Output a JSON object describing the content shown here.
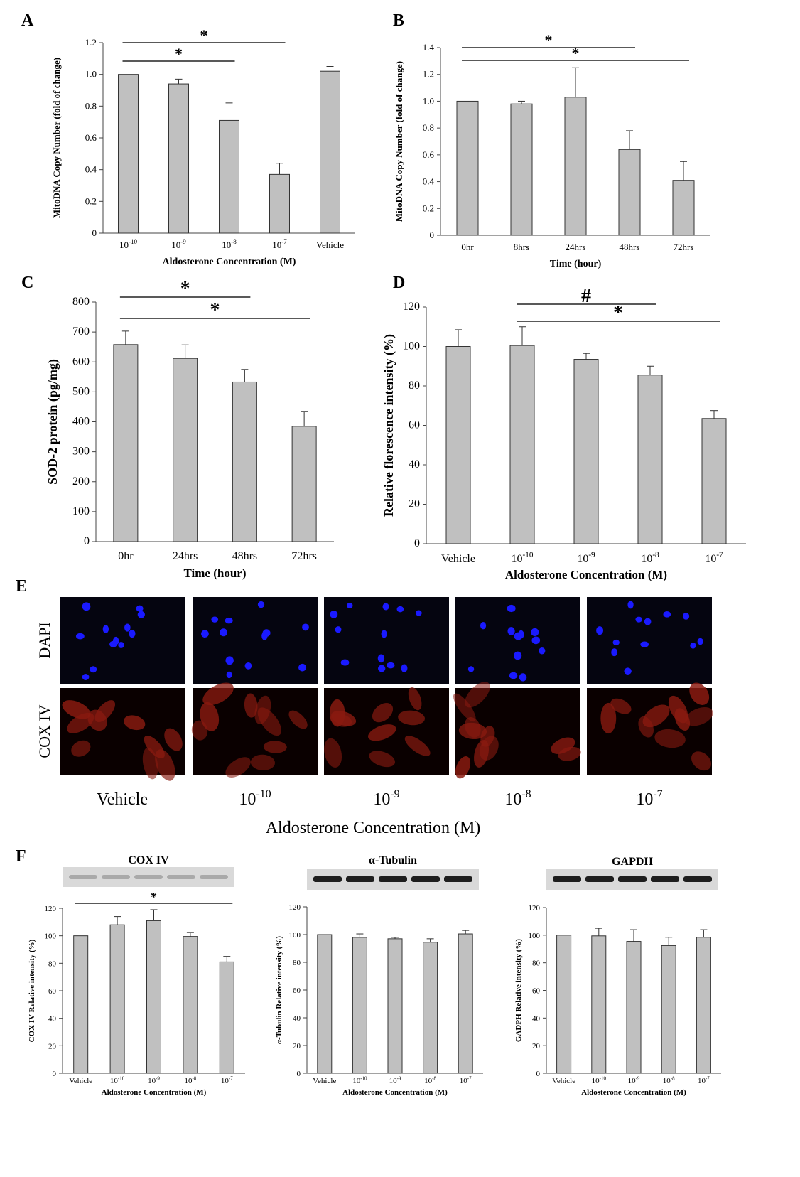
{
  "panels": {
    "A": {
      "letter": "A"
    },
    "B": {
      "letter": "B"
    },
    "C": {
      "letter": "C"
    },
    "D": {
      "letter": "D"
    },
    "E": {
      "letter": "E"
    },
    "F": {
      "letter": "F"
    }
  },
  "chart_data": [
    {
      "id": "A",
      "type": "bar",
      "categories": [
        "10-10",
        "10-9",
        "10-8",
        "10-7",
        "Vehicle"
      ],
      "values": [
        1.0,
        0.94,
        0.71,
        0.37,
        1.02
      ],
      "errors": [
        0.0,
        0.03,
        0.11,
        0.07,
        0.03
      ],
      "ylabel": "MitoDNA Copy Number (fold of change)",
      "xlabel": "Aldosterone Concentration (M)",
      "ylim": [
        0,
        1.2
      ],
      "yticks": [
        "0",
        "0.2",
        "0.4",
        "0.6",
        "0.8",
        "1.0",
        "1.2"
      ],
      "annotations": [
        {
          "from": 0,
          "to": 3,
          "label": "*"
        },
        {
          "from": 0,
          "to": 2,
          "label": "*"
        }
      ]
    },
    {
      "id": "B",
      "type": "bar",
      "categories": [
        "0hr",
        "8hrs",
        "24hrs",
        "48hrs",
        "72hrs"
      ],
      "values": [
        1.0,
        0.98,
        1.03,
        0.64,
        0.41
      ],
      "errors": [
        0.0,
        0.02,
        0.22,
        0.14,
        0.14
      ],
      "ylabel": "MitoDNA Copy Number (fold of change)",
      "xlabel": "Time (hour)",
      "ylim": [
        0,
        1.4
      ],
      "yticks": [
        "0",
        "0.2",
        "0.4",
        "0.6",
        "0.8",
        "1.0",
        "1.2",
        "1.4"
      ],
      "annotations": [
        {
          "from": 0,
          "to": 3,
          "label": "*"
        },
        {
          "from": 0,
          "to": 4,
          "label": "*"
        }
      ]
    },
    {
      "id": "C",
      "type": "bar",
      "categories": [
        "0hr",
        "24hrs",
        "48hrs",
        "72hrs"
      ],
      "values": [
        658,
        612,
        533,
        385
      ],
      "errors": [
        45,
        45,
        42,
        50
      ],
      "ylabel": "SOD-2 protein (pg/mg)",
      "xlabel": "Time (hour)",
      "ylim": [
        0,
        800
      ],
      "yticks": [
        "0",
        "100",
        "200",
        "300",
        "400",
        "500",
        "600",
        "700",
        "800"
      ],
      "annotations": [
        {
          "from": 0,
          "to": 2,
          "label": "*"
        },
        {
          "from": 0,
          "to": 3,
          "label": "*"
        }
      ]
    },
    {
      "id": "D",
      "type": "bar",
      "categories": [
        "Vehicle",
        "10-10",
        "10-9",
        "10-8",
        "10-7"
      ],
      "values": [
        100,
        100.5,
        93.5,
        85.5,
        63.5
      ],
      "errors": [
        8.5,
        9.5,
        3.0,
        4.5,
        4.0
      ],
      "ylabel": "Relative florescence intensity (%)",
      "xlabel": "Aldosterone Concentration (M)",
      "ylim": [
        0,
        120
      ],
      "yticks": [
        "0",
        "20",
        "40",
        "60",
        "80",
        "100",
        "120"
      ],
      "annotations": [
        {
          "from": 1,
          "to": 3,
          "label": "#"
        },
        {
          "from": 1,
          "to": 4,
          "label": "*"
        }
      ]
    },
    {
      "id": "F1",
      "type": "bar",
      "blot": "COX IV",
      "categories": [
        "Vehicle",
        "10-10",
        "10-9",
        "10-8",
        "10-7"
      ],
      "values": [
        100,
        108,
        111,
        99.5,
        81
      ],
      "errors": [
        0,
        6,
        8,
        3,
        4
      ],
      "ylabel": "COX IV Relative intensity (%)",
      "xlabel": "Aldosterone Concentration (M)",
      "ylim": [
        0,
        120
      ],
      "yticks": [
        "0",
        "20",
        "40",
        "60",
        "80",
        "100",
        "120"
      ],
      "annotations": [
        {
          "from": 0,
          "to": 4,
          "label": "*"
        }
      ]
    },
    {
      "id": "F2",
      "type": "bar",
      "blot": "α-Tubulin",
      "categories": [
        "Vehicle",
        "10-10",
        "10-9",
        "10-8",
        "10-7"
      ],
      "values": [
        100,
        98,
        97,
        94.5,
        100.5
      ],
      "errors": [
        0,
        2.5,
        1,
        2.5,
        2.5
      ],
      "ylabel": "α-Tubulin Relative intensity (%)",
      "xlabel": "Aldosterone Concentration (M)",
      "ylim": [
        0,
        120
      ],
      "yticks": [
        "0",
        "20",
        "40",
        "60",
        "80",
        "100",
        "120"
      ],
      "annotations": []
    },
    {
      "id": "F3",
      "type": "bar",
      "blot": "GAPDH",
      "categories": [
        "Vehicle",
        "10-10",
        "10-9",
        "10-8",
        "10-7"
      ],
      "values": [
        100,
        99.5,
        95.5,
        92.5,
        98.5
      ],
      "errors": [
        0,
        5.5,
        8.5,
        6,
        5.5
      ],
      "ylabel": "GADPH Relative intensity (%)",
      "xlabel": "Aldosterone Concentration (M)",
      "ylim": [
        0,
        120
      ],
      "yticks": [
        "0",
        "20",
        "40",
        "60",
        "80",
        "100",
        "120"
      ],
      "annotations": []
    }
  ],
  "microscopy": {
    "rows": [
      "DAPI",
      "COX IV"
    ],
    "columns": [
      {
        "base": "Vehicle",
        "exp": ""
      },
      {
        "base": "10",
        "exp": "-10"
      },
      {
        "base": "10",
        "exp": "-9"
      },
      {
        "base": "10",
        "exp": "-8"
      },
      {
        "base": "10",
        "exp": "-7"
      }
    ],
    "xlabel": "Aldosterone Concentration (M)",
    "colors": {
      "dapi_background": "#050510",
      "nucleus": "#1a1aff",
      "cox_background": "#0a0000",
      "cox_cell": "#8a1a10"
    }
  },
  "colors": {
    "bar": "#c0c0c0",
    "bar_stroke": "#333333",
    "axis": "#444444",
    "blot_background": "#d9d9d9",
    "blot_band": "#1e1e1e"
  }
}
